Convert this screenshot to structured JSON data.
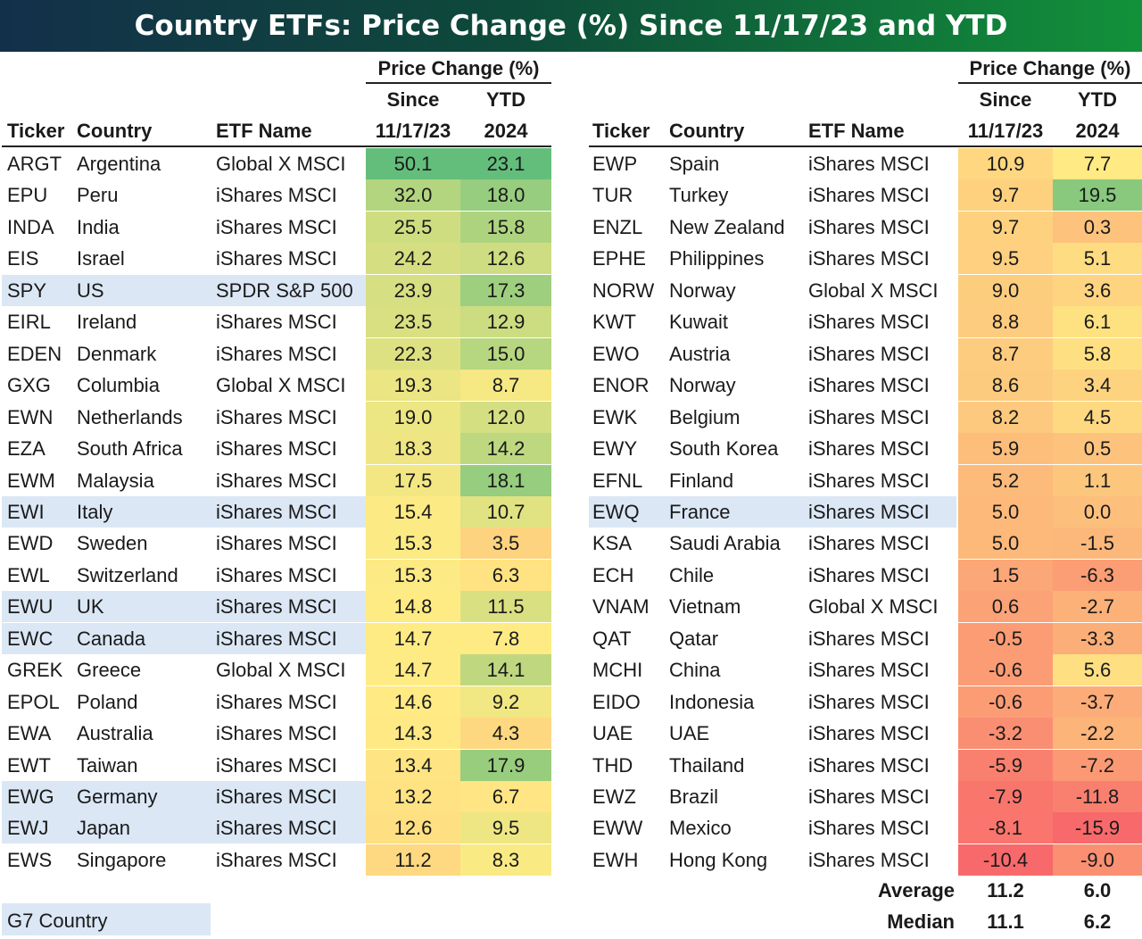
{
  "title": "Country ETFs: Price Change (%) Since 11/17/23 and YTD",
  "headers": {
    "ticker": "Ticker",
    "country": "Country",
    "etf_name": "ETF Name",
    "price_change": "Price Change (%)",
    "since": "Since",
    "since_date": "11/17/23",
    "ytd": "YTD",
    "ytd_year": "2024"
  },
  "legend": {
    "g7": "G7 Country"
  },
  "summary": {
    "average_label": "Average",
    "median_label": "Median",
    "average_since": "11.2",
    "average_ytd": "6.0",
    "median_since": "11.1",
    "median_ytd": "6.2"
  },
  "chart_data": {
    "type": "table",
    "title": "Country ETFs: Price Change (%) Since 11/17/23 and YTD",
    "columns": [
      "Ticker",
      "Country",
      "ETF Name",
      "Since 11/17/23",
      "YTD 2024"
    ],
    "left_rows": [
      {
        "ticker": "ARGT",
        "country": "Argentina",
        "etf": "Global X MSCI",
        "since": "50.1",
        "ytd": "23.1",
        "g7": false
      },
      {
        "ticker": "EPU",
        "country": "Peru",
        "etf": "iShares MSCI",
        "since": "32.0",
        "ytd": "18.0",
        "g7": false
      },
      {
        "ticker": "INDA",
        "country": "India",
        "etf": "iShares MSCI",
        "since": "25.5",
        "ytd": "15.8",
        "g7": false
      },
      {
        "ticker": "EIS",
        "country": "Israel",
        "etf": "iShares MSCI",
        "since": "24.2",
        "ytd": "12.6",
        "g7": false
      },
      {
        "ticker": "SPY",
        "country": "US",
        "etf": "SPDR S&P 500",
        "since": "23.9",
        "ytd": "17.3",
        "g7": true
      },
      {
        "ticker": "EIRL",
        "country": "Ireland",
        "etf": "iShares MSCI",
        "since": "23.5",
        "ytd": "12.9",
        "g7": false
      },
      {
        "ticker": "EDEN",
        "country": "Denmark",
        "etf": "iShares MSCI",
        "since": "22.3",
        "ytd": "15.0",
        "g7": false
      },
      {
        "ticker": "GXG",
        "country": "Columbia",
        "etf": "Global X MSCI",
        "since": "19.3",
        "ytd": "8.7",
        "g7": false
      },
      {
        "ticker": "EWN",
        "country": "Netherlands",
        "etf": "iShares MSCI",
        "since": "19.0",
        "ytd": "12.0",
        "g7": false
      },
      {
        "ticker": "EZA",
        "country": "South Africa",
        "etf": "iShares MSCI",
        "since": "18.3",
        "ytd": "14.2",
        "g7": false
      },
      {
        "ticker": "EWM",
        "country": "Malaysia",
        "etf": "iShares MSCI",
        "since": "17.5",
        "ytd": "18.1",
        "g7": false
      },
      {
        "ticker": "EWI",
        "country": "Italy",
        "etf": "iShares MSCI",
        "since": "15.4",
        "ytd": "10.7",
        "g7": true
      },
      {
        "ticker": "EWD",
        "country": "Sweden",
        "etf": "iShares MSCI",
        "since": "15.3",
        "ytd": "3.5",
        "g7": false
      },
      {
        "ticker": "EWL",
        "country": "Switzerland",
        "etf": "iShares MSCI",
        "since": "15.3",
        "ytd": "6.3",
        "g7": false
      },
      {
        "ticker": "EWU",
        "country": "UK",
        "etf": "iShares MSCI",
        "since": "14.8",
        "ytd": "11.5",
        "g7": true
      },
      {
        "ticker": "EWC",
        "country": "Canada",
        "etf": "iShares MSCI",
        "since": "14.7",
        "ytd": "7.8",
        "g7": true
      },
      {
        "ticker": "GREK",
        "country": "Greece",
        "etf": "Global X MSCI",
        "since": "14.7",
        "ytd": "14.1",
        "g7": false
      },
      {
        "ticker": "EPOL",
        "country": "Poland",
        "etf": "iShares MSCI",
        "since": "14.6",
        "ytd": "9.2",
        "g7": false
      },
      {
        "ticker": "EWA",
        "country": "Australia",
        "etf": "iShares MSCI",
        "since": "14.3",
        "ytd": "4.3",
        "g7": false
      },
      {
        "ticker": "EWT",
        "country": "Taiwan",
        "etf": "iShares MSCI",
        "since": "13.4",
        "ytd": "17.9",
        "g7": false
      },
      {
        "ticker": "EWG",
        "country": "Germany",
        "etf": "iShares MSCI",
        "since": "13.2",
        "ytd": "6.7",
        "g7": true
      },
      {
        "ticker": "EWJ",
        "country": "Japan",
        "etf": "iShares MSCI",
        "since": "12.6",
        "ytd": "9.5",
        "g7": true
      },
      {
        "ticker": "EWS",
        "country": "Singapore",
        "etf": "iShares MSCI",
        "since": "11.2",
        "ytd": "8.3",
        "g7": false
      }
    ],
    "right_rows": [
      {
        "ticker": "EWP",
        "country": "Spain",
        "etf": "iShares MSCI",
        "since": "10.9",
        "ytd": "7.7",
        "g7": false
      },
      {
        "ticker": "TUR",
        "country": "Turkey",
        "etf": "iShares MSCI",
        "since": "9.7",
        "ytd": "19.5",
        "g7": false
      },
      {
        "ticker": "ENZL",
        "country": "New Zealand",
        "etf": "iShares MSCI",
        "since": "9.7",
        "ytd": "0.3",
        "g7": false
      },
      {
        "ticker": "EPHE",
        "country": "Philippines",
        "etf": "iShares MSCI",
        "since": "9.5",
        "ytd": "5.1",
        "g7": false
      },
      {
        "ticker": "NORW",
        "country": "Norway",
        "etf": "Global X MSCI",
        "since": "9.0",
        "ytd": "3.6",
        "g7": false
      },
      {
        "ticker": "KWT",
        "country": "Kuwait",
        "etf": "iShares MSCI",
        "since": "8.8",
        "ytd": "6.1",
        "g7": false
      },
      {
        "ticker": "EWO",
        "country": "Austria",
        "etf": "iShares MSCI",
        "since": "8.7",
        "ytd": "5.8",
        "g7": false
      },
      {
        "ticker": "ENOR",
        "country": "Norway",
        "etf": "iShares MSCI",
        "since": "8.6",
        "ytd": "3.4",
        "g7": false
      },
      {
        "ticker": "EWK",
        "country": "Belgium",
        "etf": "iShares MSCI",
        "since": "8.2",
        "ytd": "4.5",
        "g7": false
      },
      {
        "ticker": "EWY",
        "country": "South Korea",
        "etf": "iShares MSCI",
        "since": "5.9",
        "ytd": "0.5",
        "g7": false
      },
      {
        "ticker": "EFNL",
        "country": "Finland",
        "etf": "iShares MSCI",
        "since": "5.2",
        "ytd": "1.1",
        "g7": false
      },
      {
        "ticker": "EWQ",
        "country": "France",
        "etf": "iShares MSCI",
        "since": "5.0",
        "ytd": "0.0",
        "g7": true
      },
      {
        "ticker": "KSA",
        "country": "Saudi Arabia",
        "etf": "iShares MSCI",
        "since": "5.0",
        "ytd": "-1.5",
        "g7": false
      },
      {
        "ticker": "ECH",
        "country": "Chile",
        "etf": "iShares MSCI",
        "since": "1.5",
        "ytd": "-6.3",
        "g7": false
      },
      {
        "ticker": "VNAM",
        "country": "Vietnam",
        "etf": "Global X MSCI",
        "since": "0.6",
        "ytd": "-2.7",
        "g7": false
      },
      {
        "ticker": "QAT",
        "country": "Qatar",
        "etf": "iShares MSCI",
        "since": "-0.5",
        "ytd": "-3.3",
        "g7": false
      },
      {
        "ticker": "MCHI",
        "country": "China",
        "etf": "iShares MSCI",
        "since": "-0.6",
        "ytd": "5.6",
        "g7": false
      },
      {
        "ticker": "EIDO",
        "country": "Indonesia",
        "etf": "iShares MSCI",
        "since": "-0.6",
        "ytd": "-3.7",
        "g7": false
      },
      {
        "ticker": "UAE",
        "country": "UAE",
        "etf": "iShares MSCI",
        "since": "-3.2",
        "ytd": "-2.2",
        "g7": false
      },
      {
        "ticker": "THD",
        "country": "Thailand",
        "etf": "iShares MSCI",
        "since": "-5.9",
        "ytd": "-7.2",
        "g7": false
      },
      {
        "ticker": "EWZ",
        "country": "Brazil",
        "etf": "iShares MSCI",
        "since": "-7.9",
        "ytd": "-11.8",
        "g7": false
      },
      {
        "ticker": "EWW",
        "country": "Mexico",
        "etf": "iShares MSCI",
        "since": "-8.1",
        "ytd": "-15.9",
        "g7": false
      },
      {
        "ticker": "EWH",
        "country": "Hong Kong",
        "etf": "iShares MSCI",
        "since": "-10.4",
        "ytd": "-9.0",
        "g7": false
      }
    ],
    "color_scale": {
      "since": {
        "min": -10.4,
        "mid": 14.7,
        "max": 50.1
      },
      "ytd": {
        "min": -15.9,
        "mid": 7.8,
        "max": 23.1
      },
      "low_color": "#f8696b",
      "mid_color": "#ffeb84",
      "high_color": "#63be7b"
    }
  },
  "colors": {
    "g7_highlight": "#dbe7f5",
    "title_bar_left": "#13304a",
    "title_bar_right": "#12913a",
    "title_text": "#ffffff"
  }
}
